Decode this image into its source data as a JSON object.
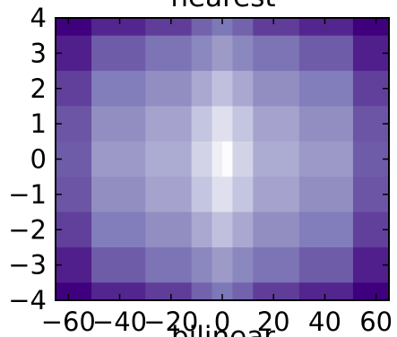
{
  "chart_data": {
    "type": "heatmap",
    "title": "nearest",
    "next_title": "bilinear",
    "interpolation": "nearest",
    "colormap": "Purples_r",
    "color_stops": [
      "#3f007d",
      "#54278f",
      "#6a51a3",
      "#807dba",
      "#9e9ac8",
      "#bcbddc",
      "#dadaeb",
      "#efedf5",
      "#fcfbfd"
    ],
    "xlim": [
      -65,
      65
    ],
    "ylim": [
      -4,
      4
    ],
    "xticks": [
      "−60",
      "−40",
      "−20",
      "0",
      "20",
      "40",
      "60"
    ],
    "yticks": [
      "4",
      "3",
      "2",
      "1",
      "0",
      "−1",
      "−2",
      "−3",
      "−4"
    ],
    "x_edges": [
      -65,
      -51,
      -30,
      -12,
      -4,
      0,
      4,
      12,
      30,
      51,
      65
    ],
    "y_edges": [
      4,
      3.5,
      2.5,
      1.5,
      0.5,
      -0.5,
      -1.5,
      -2.5,
      -3.5,
      -4
    ],
    "values": [
      [
        0.0,
        0.12,
        0.19,
        0.3,
        0.36,
        0.36,
        0.3,
        0.19,
        0.12,
        0.0
      ],
      [
        0.1,
        0.28,
        0.35,
        0.42,
        0.5,
        0.5,
        0.42,
        0.35,
        0.28,
        0.1
      ],
      [
        0.2,
        0.38,
        0.45,
        0.55,
        0.64,
        0.64,
        0.55,
        0.45,
        0.38,
        0.2
      ],
      [
        0.26,
        0.45,
        0.53,
        0.66,
        0.78,
        0.78,
        0.66,
        0.53,
        0.45,
        0.26
      ],
      [
        0.28,
        0.49,
        0.56,
        0.72,
        0.88,
        1.0,
        0.72,
        0.56,
        0.49,
        0.28
      ],
      [
        0.26,
        0.45,
        0.53,
        0.66,
        0.78,
        0.78,
        0.66,
        0.53,
        0.45,
        0.26
      ],
      [
        0.2,
        0.38,
        0.45,
        0.55,
        0.64,
        0.64,
        0.55,
        0.45,
        0.38,
        0.2
      ],
      [
        0.1,
        0.28,
        0.35,
        0.42,
        0.5,
        0.5,
        0.42,
        0.35,
        0.28,
        0.1
      ],
      [
        0.0,
        0.12,
        0.19,
        0.3,
        0.36,
        0.36,
        0.3,
        0.19,
        0.12,
        0.0
      ]
    ],
    "grid": false,
    "legend": "none"
  }
}
